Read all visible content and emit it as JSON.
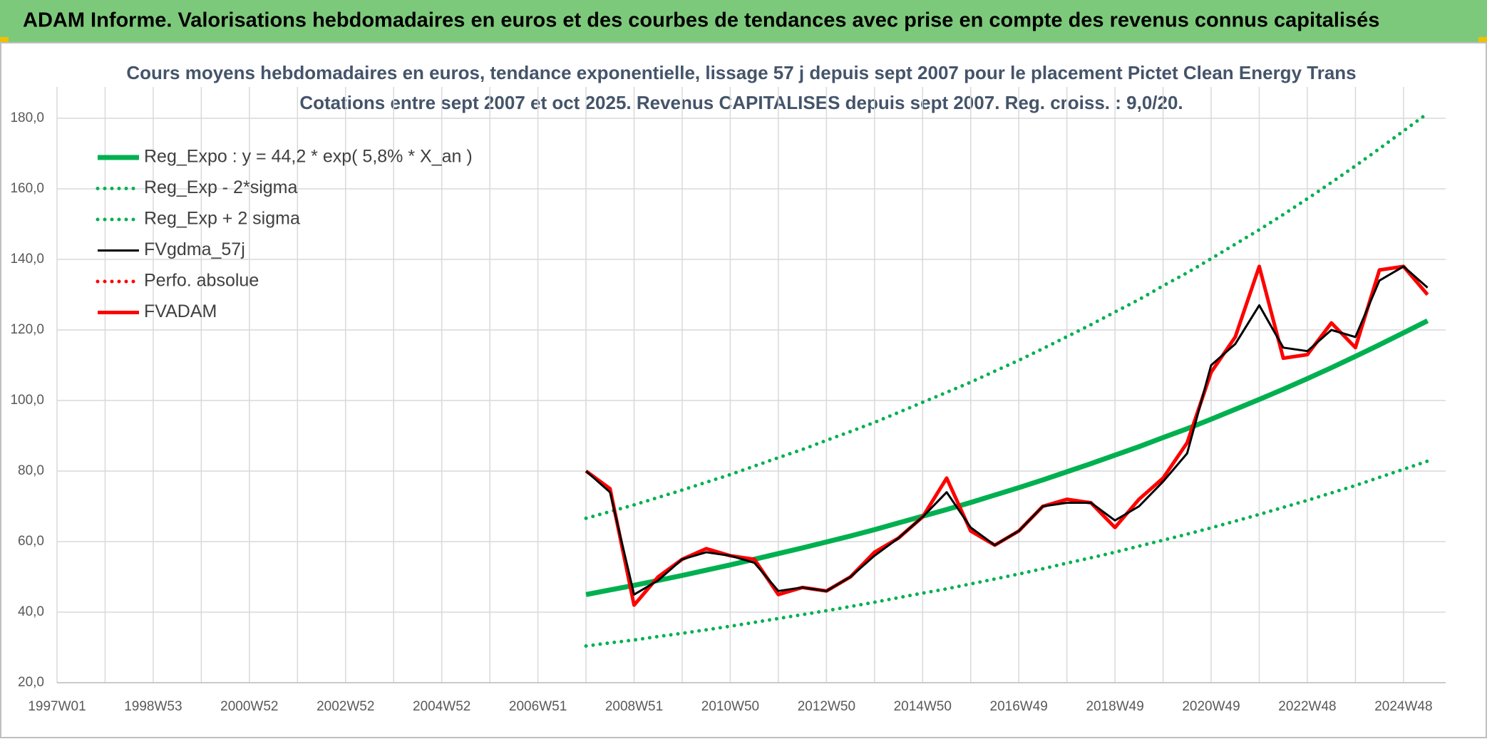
{
  "chart_data": {
    "type": "line",
    "title": "ADAM Informe. Valorisations hebdomadaires en euros et des courbes de tendances avec prise en compte des revenus connus capitalisés",
    "subtitle": [
      "Cours moyens hebdomadaires en euros, tendance exponentielle, lissage 57 j depuis sept 2007 pour le placement Pictet Clean Energy Trans",
      "Cotations entre sept 2007 et oct 2025. Revenus CAPITALISES depuis sept 2007. Reg. croiss. : 9,0/20."
    ],
    "categories": [
      "1997W01",
      null,
      null,
      null,
      "1998W53",
      null,
      null,
      null,
      "2000W52",
      null,
      null,
      null,
      "2002W52",
      null,
      null,
      null,
      "2004W52",
      null,
      null,
      null,
      "2006W51",
      null,
      null,
      null,
      "2008W51",
      null,
      null,
      null,
      "2010W50",
      null,
      null,
      null,
      "2012W50",
      null,
      null,
      null,
      "2014W50",
      null,
      null,
      null,
      "2016W49",
      null,
      null,
      null,
      "2018W49",
      null,
      null,
      null,
      "2020W49",
      null,
      null,
      null,
      "2022W48",
      null,
      null,
      null,
      "2024W48",
      null
    ],
    "ylim": [
      20,
      180
    ],
    "yticks": [
      {
        "value": 20,
        "label": "20,0"
      },
      {
        "value": 40,
        "label": "40,0"
      },
      {
        "value": 60,
        "label": "60,0"
      },
      {
        "value": 80,
        "label": "80,0"
      },
      {
        "value": 100,
        "label": "100,0"
      },
      {
        "value": 120,
        "label": "120,0"
      },
      {
        "value": 140,
        "label": "140,0"
      },
      {
        "value": 160,
        "label": "160,0"
      },
      {
        "value": 180,
        "label": "180,0"
      }
    ],
    "grid": true,
    "legend": "top-left",
    "series": [
      {
        "name": "Reg_Expo : y = 44,2 * exp( 5,8% *  X_an )",
        "color": "#00b050",
        "style": "solid",
        "values": [
          null,
          null,
          null,
          null,
          null,
          null,
          null,
          null,
          null,
          null,
          null,
          null,
          null,
          null,
          null,
          null,
          null,
          null,
          null,
          null,
          null,
          null,
          45.0,
          46.3,
          47.6,
          49.0,
          50.4,
          51.9,
          53.4,
          55.0,
          56.6,
          58.2,
          59.9,
          61.6,
          63.4,
          65.3,
          67.2,
          69.1,
          71.1,
          73.2,
          75.3,
          77.5,
          79.8,
          82.1,
          84.5,
          86.9,
          89.5,
          92.0,
          94.7,
          97.5,
          100.3,
          103.2,
          106.2,
          109.3,
          112.5,
          115.8,
          119.2,
          122.6
        ]
      },
      {
        "name": "Reg_Exp - 2*sigma",
        "color": "#00b050",
        "style": "dotted",
        "values": [
          null,
          null,
          null,
          null,
          null,
          null,
          null,
          null,
          null,
          null,
          null,
          null,
          null,
          null,
          null,
          null,
          null,
          null,
          null,
          null,
          null,
          null,
          30.4,
          31.3,
          32.1,
          33.1,
          34.0,
          35.0,
          36.0,
          37.1,
          38.2,
          39.3,
          40.4,
          41.6,
          42.8,
          44.1,
          45.4,
          46.6,
          48.0,
          49.4,
          50.8,
          52.3,
          53.9,
          55.4,
          57.0,
          58.7,
          60.4,
          62.1,
          63.9,
          65.8,
          67.7,
          69.7,
          71.7,
          73.8,
          75.9,
          78.2,
          80.5,
          82.8
        ]
      },
      {
        "name": "Reg_Exp + 2 sigma",
        "color": "#00b050",
        "style": "dotted",
        "values": [
          null,
          null,
          null,
          null,
          null,
          null,
          null,
          null,
          null,
          null,
          null,
          null,
          null,
          null,
          null,
          null,
          null,
          null,
          null,
          null,
          null,
          null,
          66.6,
          68.5,
          70.4,
          72.5,
          74.6,
          76.8,
          79.0,
          81.4,
          83.8,
          86.1,
          88.7,
          91.2,
          93.8,
          96.6,
          99.5,
          102.3,
          105.2,
          108.3,
          111.4,
          114.7,
          118.1,
          121.5,
          125.1,
          128.6,
          132.5,
          136.2,
          140.2,
          144.3,
          148.4,
          152.7,
          157.2,
          161.8,
          166.5,
          171.4,
          176.4,
          181.4
        ]
      },
      {
        "name": "FVgdma_57j",
        "color": "#000000",
        "style": "solid",
        "values": [
          null,
          null,
          null,
          null,
          null,
          null,
          null,
          null,
          null,
          null,
          null,
          null,
          null,
          null,
          null,
          null,
          null,
          null,
          null,
          null,
          null,
          null,
          80,
          74,
          45,
          49,
          55,
          57,
          56,
          54,
          46,
          47,
          46,
          50,
          56,
          61,
          67,
          74,
          64,
          59,
          63,
          70,
          71,
          71,
          66,
          70,
          77,
          85,
          110,
          116,
          127,
          115,
          114,
          120,
          118,
          134,
          138,
          132
        ]
      },
      {
        "name": "Perfo. absolue",
        "color": "#ff0000",
        "style": "dotted",
        "values": [
          null,
          null,
          null,
          null,
          null,
          null,
          null,
          null,
          null,
          null,
          null,
          null,
          null,
          null,
          null,
          null,
          null,
          null,
          null,
          null,
          null,
          null,
          null,
          null,
          null,
          null,
          null,
          null,
          null,
          null,
          null,
          null,
          null,
          null,
          null,
          null,
          null,
          null,
          null,
          null,
          null,
          null,
          null,
          null,
          null,
          null,
          null,
          null,
          null,
          null,
          null,
          null,
          null,
          null,
          null,
          null,
          null,
          null
        ]
      },
      {
        "name": "FVADAM",
        "color": "#ff0000",
        "style": "solid",
        "values": [
          null,
          null,
          null,
          null,
          null,
          null,
          null,
          null,
          null,
          null,
          null,
          null,
          null,
          null,
          null,
          null,
          null,
          null,
          null,
          null,
          null,
          null,
          80,
          75,
          42,
          50,
          55,
          58,
          56,
          55,
          45,
          47,
          46,
          50,
          57,
          61,
          67,
          78,
          63,
          59,
          63,
          70,
          72,
          71,
          64,
          72,
          78,
          88,
          108,
          118,
          138,
          112,
          113,
          122,
          115,
          137,
          138,
          130
        ]
      }
    ]
  }
}
